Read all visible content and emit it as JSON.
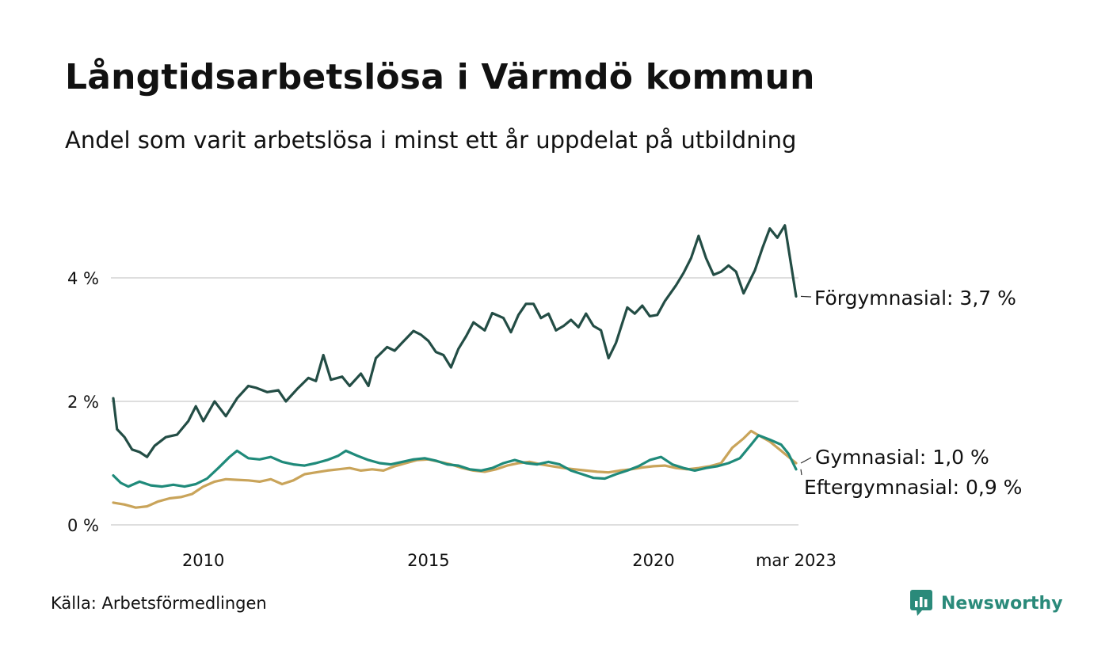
{
  "header": {
    "title": "Långtidsarbetslösa i Värmdö kommun",
    "subtitle": "Andel som varit arbetslösa i minst ett år uppdelat på utbildning"
  },
  "footer": {
    "source": "Källa: Arbetsförmedlingen",
    "brand": "Newsworthy",
    "brand_icon": "bar-chart-icon",
    "brand_color": "#2a8a7a"
  },
  "chart_data": {
    "type": "line",
    "title": "Långtidsarbetslösa i Värmdö kommun",
    "subtitle": "Andel som varit arbetslösa i minst ett år uppdelat på utbildning",
    "xlabel": "",
    "ylabel": "",
    "y_unit": "%",
    "ylim": [
      0,
      5.5
    ],
    "y_ticks": [
      0,
      2,
      4
    ],
    "y_tick_labels": [
      "0 %",
      "2 %",
      "4 %"
    ],
    "x_range": [
      "2008-01",
      "2023-03"
    ],
    "x_ticks": [
      "2010-01",
      "2015-01",
      "2020-01",
      "2023-03"
    ],
    "x_tick_labels": [
      "2010",
      "2015",
      "2020",
      "mar 2023"
    ],
    "grid": "horizontal",
    "legend": "direct labels at line ends (right)",
    "series": [
      {
        "name": "Förgymnasial",
        "end_label": "Förgymnasial: 3,7 %",
        "color": "#234d45",
        "points": [
          [
            "2008-01",
            2.05
          ],
          [
            "2008-02",
            1.55
          ],
          [
            "2008-04",
            1.42
          ],
          [
            "2008-06",
            1.22
          ],
          [
            "2008-08",
            1.18
          ],
          [
            "2008-10",
            1.1
          ],
          [
            "2008-12",
            1.28
          ],
          [
            "2009-03",
            1.42
          ],
          [
            "2009-06",
            1.46
          ],
          [
            "2009-09",
            1.68
          ],
          [
            "2009-11",
            1.92
          ],
          [
            "2010-01",
            1.68
          ],
          [
            "2010-04",
            2.0
          ],
          [
            "2010-07",
            1.76
          ],
          [
            "2010-10",
            2.05
          ],
          [
            "2011-01",
            2.25
          ],
          [
            "2011-03",
            2.22
          ],
          [
            "2011-06",
            2.15
          ],
          [
            "2011-09",
            2.18
          ],
          [
            "2011-11",
            2.0
          ],
          [
            "2012-02",
            2.2
          ],
          [
            "2012-05",
            2.38
          ],
          [
            "2012-07",
            2.33
          ],
          [
            "2012-09",
            2.75
          ],
          [
            "2012-11",
            2.35
          ],
          [
            "2013-02",
            2.4
          ],
          [
            "2013-04",
            2.25
          ],
          [
            "2013-07",
            2.45
          ],
          [
            "2013-09",
            2.25
          ],
          [
            "2013-11",
            2.7
          ],
          [
            "2014-02",
            2.88
          ],
          [
            "2014-04",
            2.82
          ],
          [
            "2014-06",
            2.95
          ],
          [
            "2014-09",
            3.14
          ],
          [
            "2014-11",
            3.08
          ],
          [
            "2015-01",
            2.98
          ],
          [
            "2015-03",
            2.8
          ],
          [
            "2015-05",
            2.75
          ],
          [
            "2015-07",
            2.55
          ],
          [
            "2015-09",
            2.85
          ],
          [
            "2015-11",
            3.05
          ],
          [
            "2016-01",
            3.28
          ],
          [
            "2016-04",
            3.15
          ],
          [
            "2016-06",
            3.43
          ],
          [
            "2016-09",
            3.35
          ],
          [
            "2016-11",
            3.12
          ],
          [
            "2017-01",
            3.4
          ],
          [
            "2017-03",
            3.58
          ],
          [
            "2017-05",
            3.58
          ],
          [
            "2017-07",
            3.35
          ],
          [
            "2017-09",
            3.42
          ],
          [
            "2017-11",
            3.15
          ],
          [
            "2018-01",
            3.22
          ],
          [
            "2018-03",
            3.32
          ],
          [
            "2018-05",
            3.2
          ],
          [
            "2018-07",
            3.42
          ],
          [
            "2018-09",
            3.22
          ],
          [
            "2018-11",
            3.15
          ],
          [
            "2019-01",
            2.7
          ],
          [
            "2019-03",
            2.95
          ],
          [
            "2019-06",
            3.52
          ],
          [
            "2019-08",
            3.42
          ],
          [
            "2019-10",
            3.55
          ],
          [
            "2019-12",
            3.38
          ],
          [
            "2020-02",
            3.4
          ],
          [
            "2020-04",
            3.62
          ],
          [
            "2020-07",
            3.88
          ],
          [
            "2020-09",
            4.08
          ],
          [
            "2020-11",
            4.32
          ],
          [
            "2021-01",
            4.68
          ],
          [
            "2021-03",
            4.32
          ],
          [
            "2021-05",
            4.05
          ],
          [
            "2021-07",
            4.1
          ],
          [
            "2021-09",
            4.2
          ],
          [
            "2021-11",
            4.1
          ],
          [
            "2022-01",
            3.75
          ],
          [
            "2022-04",
            4.12
          ],
          [
            "2022-06",
            4.48
          ],
          [
            "2022-08",
            4.8
          ],
          [
            "2022-10",
            4.65
          ],
          [
            "2022-12",
            4.85
          ],
          [
            "2023-03",
            3.7
          ]
        ]
      },
      {
        "name": "Gymnasial",
        "end_label": "Gymnasial: 1,0 %",
        "color": "#c9a45a",
        "points": [
          [
            "2008-01",
            0.36
          ],
          [
            "2008-04",
            0.33
          ],
          [
            "2008-07",
            0.28
          ],
          [
            "2008-10",
            0.3
          ],
          [
            "2009-01",
            0.38
          ],
          [
            "2009-04",
            0.43
          ],
          [
            "2009-07",
            0.45
          ],
          [
            "2009-10",
            0.5
          ],
          [
            "2010-01",
            0.62
          ],
          [
            "2010-04",
            0.7
          ],
          [
            "2010-07",
            0.74
          ],
          [
            "2010-10",
            0.73
          ],
          [
            "2011-01",
            0.72
          ],
          [
            "2011-04",
            0.7
          ],
          [
            "2011-07",
            0.74
          ],
          [
            "2011-10",
            0.66
          ],
          [
            "2012-01",
            0.72
          ],
          [
            "2012-04",
            0.82
          ],
          [
            "2012-07",
            0.85
          ],
          [
            "2012-10",
            0.88
          ],
          [
            "2013-01",
            0.9
          ],
          [
            "2013-04",
            0.92
          ],
          [
            "2013-07",
            0.88
          ],
          [
            "2013-10",
            0.9
          ],
          [
            "2014-01",
            0.88
          ],
          [
            "2014-04",
            0.95
          ],
          [
            "2014-07",
            1.0
          ],
          [
            "2014-10",
            1.05
          ],
          [
            "2015-01",
            1.06
          ],
          [
            "2015-04",
            1.02
          ],
          [
            "2015-07",
            0.98
          ],
          [
            "2015-10",
            0.92
          ],
          [
            "2016-01",
            0.88
          ],
          [
            "2016-04",
            0.86
          ],
          [
            "2016-07",
            0.9
          ],
          [
            "2016-10",
            0.96
          ],
          [
            "2017-01",
            1.0
          ],
          [
            "2017-04",
            1.02
          ],
          [
            "2017-07",
            0.98
          ],
          [
            "2017-10",
            0.95
          ],
          [
            "2018-01",
            0.92
          ],
          [
            "2018-04",
            0.9
          ],
          [
            "2018-07",
            0.88
          ],
          [
            "2018-10",
            0.86
          ],
          [
            "2019-01",
            0.85
          ],
          [
            "2019-04",
            0.88
          ],
          [
            "2019-07",
            0.9
          ],
          [
            "2019-10",
            0.93
          ],
          [
            "2020-01",
            0.95
          ],
          [
            "2020-04",
            0.96
          ],
          [
            "2020-07",
            0.92
          ],
          [
            "2020-10",
            0.9
          ],
          [
            "2021-01",
            0.92
          ],
          [
            "2021-04",
            0.95
          ],
          [
            "2021-07",
            1.0
          ],
          [
            "2021-10",
            1.25
          ],
          [
            "2022-01",
            1.4
          ],
          [
            "2022-03",
            1.52
          ],
          [
            "2022-05",
            1.45
          ],
          [
            "2022-08",
            1.35
          ],
          [
            "2022-11",
            1.2
          ],
          [
            "2023-01",
            1.1
          ],
          [
            "2023-03",
            1.0
          ]
        ]
      },
      {
        "name": "Eftergymnasial",
        "end_label": "Eftergymnasial: 0,9 %",
        "color": "#1f8a7a",
        "points": [
          [
            "2008-01",
            0.8
          ],
          [
            "2008-03",
            0.68
          ],
          [
            "2008-05",
            0.62
          ],
          [
            "2008-08",
            0.7
          ],
          [
            "2008-11",
            0.64
          ],
          [
            "2009-02",
            0.62
          ],
          [
            "2009-05",
            0.65
          ],
          [
            "2009-08",
            0.62
          ],
          [
            "2009-11",
            0.66
          ],
          [
            "2010-02",
            0.75
          ],
          [
            "2010-05",
            0.92
          ],
          [
            "2010-08",
            1.1
          ],
          [
            "2010-10",
            1.2
          ],
          [
            "2011-01",
            1.08
          ],
          [
            "2011-04",
            1.06
          ],
          [
            "2011-07",
            1.1
          ],
          [
            "2011-10",
            1.02
          ],
          [
            "2012-01",
            0.98
          ],
          [
            "2012-04",
            0.96
          ],
          [
            "2012-07",
            1.0
          ],
          [
            "2012-10",
            1.05
          ],
          [
            "2013-01",
            1.12
          ],
          [
            "2013-03",
            1.2
          ],
          [
            "2013-06",
            1.12
          ],
          [
            "2013-09",
            1.05
          ],
          [
            "2013-12",
            1.0
          ],
          [
            "2014-03",
            0.98
          ],
          [
            "2014-06",
            1.02
          ],
          [
            "2014-09",
            1.06
          ],
          [
            "2014-12",
            1.08
          ],
          [
            "2015-03",
            1.04
          ],
          [
            "2015-06",
            0.98
          ],
          [
            "2015-09",
            0.96
          ],
          [
            "2015-12",
            0.9
          ],
          [
            "2016-03",
            0.88
          ],
          [
            "2016-06",
            0.92
          ],
          [
            "2016-09",
            1.0
          ],
          [
            "2016-12",
            1.05
          ],
          [
            "2017-03",
            1.0
          ],
          [
            "2017-06",
            0.98
          ],
          [
            "2017-09",
            1.02
          ],
          [
            "2017-12",
            0.98
          ],
          [
            "2018-03",
            0.88
          ],
          [
            "2018-06",
            0.82
          ],
          [
            "2018-09",
            0.76
          ],
          [
            "2018-12",
            0.75
          ],
          [
            "2019-03",
            0.82
          ],
          [
            "2019-06",
            0.88
          ],
          [
            "2019-09",
            0.95
          ],
          [
            "2019-12",
            1.05
          ],
          [
            "2020-03",
            1.1
          ],
          [
            "2020-06",
            0.98
          ],
          [
            "2020-09",
            0.92
          ],
          [
            "2020-12",
            0.88
          ],
          [
            "2021-03",
            0.92
          ],
          [
            "2021-06",
            0.95
          ],
          [
            "2021-09",
            1.0
          ],
          [
            "2021-12",
            1.08
          ],
          [
            "2022-03",
            1.3
          ],
          [
            "2022-05",
            1.45
          ],
          [
            "2022-08",
            1.38
          ],
          [
            "2022-11",
            1.3
          ],
          [
            "2023-01",
            1.15
          ],
          [
            "2023-03",
            0.9
          ]
        ]
      }
    ]
  }
}
